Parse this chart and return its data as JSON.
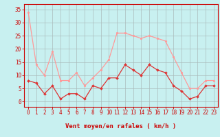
{
  "x": [
    0,
    1,
    2,
    3,
    4,
    5,
    6,
    7,
    8,
    9,
    10,
    11,
    12,
    13,
    14,
    15,
    16,
    17,
    18,
    19,
    20,
    21,
    22,
    23
  ],
  "vent_moyen": [
    8,
    7,
    3,
    6,
    1,
    3,
    3,
    1,
    6,
    5,
    9,
    9,
    14,
    12,
    10,
    14,
    12,
    11,
    6,
    4,
    1,
    2,
    6,
    6
  ],
  "vent_rafales": [
    34,
    14,
    10,
    19,
    8,
    8,
    11,
    6,
    9,
    12,
    16,
    26,
    26,
    25,
    24,
    25,
    24,
    23,
    17,
    11,
    5,
    5,
    8,
    8
  ],
  "moyen_color": "#dd3333",
  "rafales_color": "#ff9999",
  "bg_color": "#c8f0f0",
  "grid_color": "#aabbbb",
  "xlabel": "Vent moyen/en rafales ( km/h )",
  "ylim": [
    -2,
    37
  ],
  "yticks": [
    0,
    5,
    10,
    15,
    20,
    25,
    30,
    35
  ],
  "xlim": [
    -0.5,
    23.5
  ],
  "label_color": "#cc0000",
  "tick_fontsize": 5.5,
  "xlabel_fontsize": 6.5
}
